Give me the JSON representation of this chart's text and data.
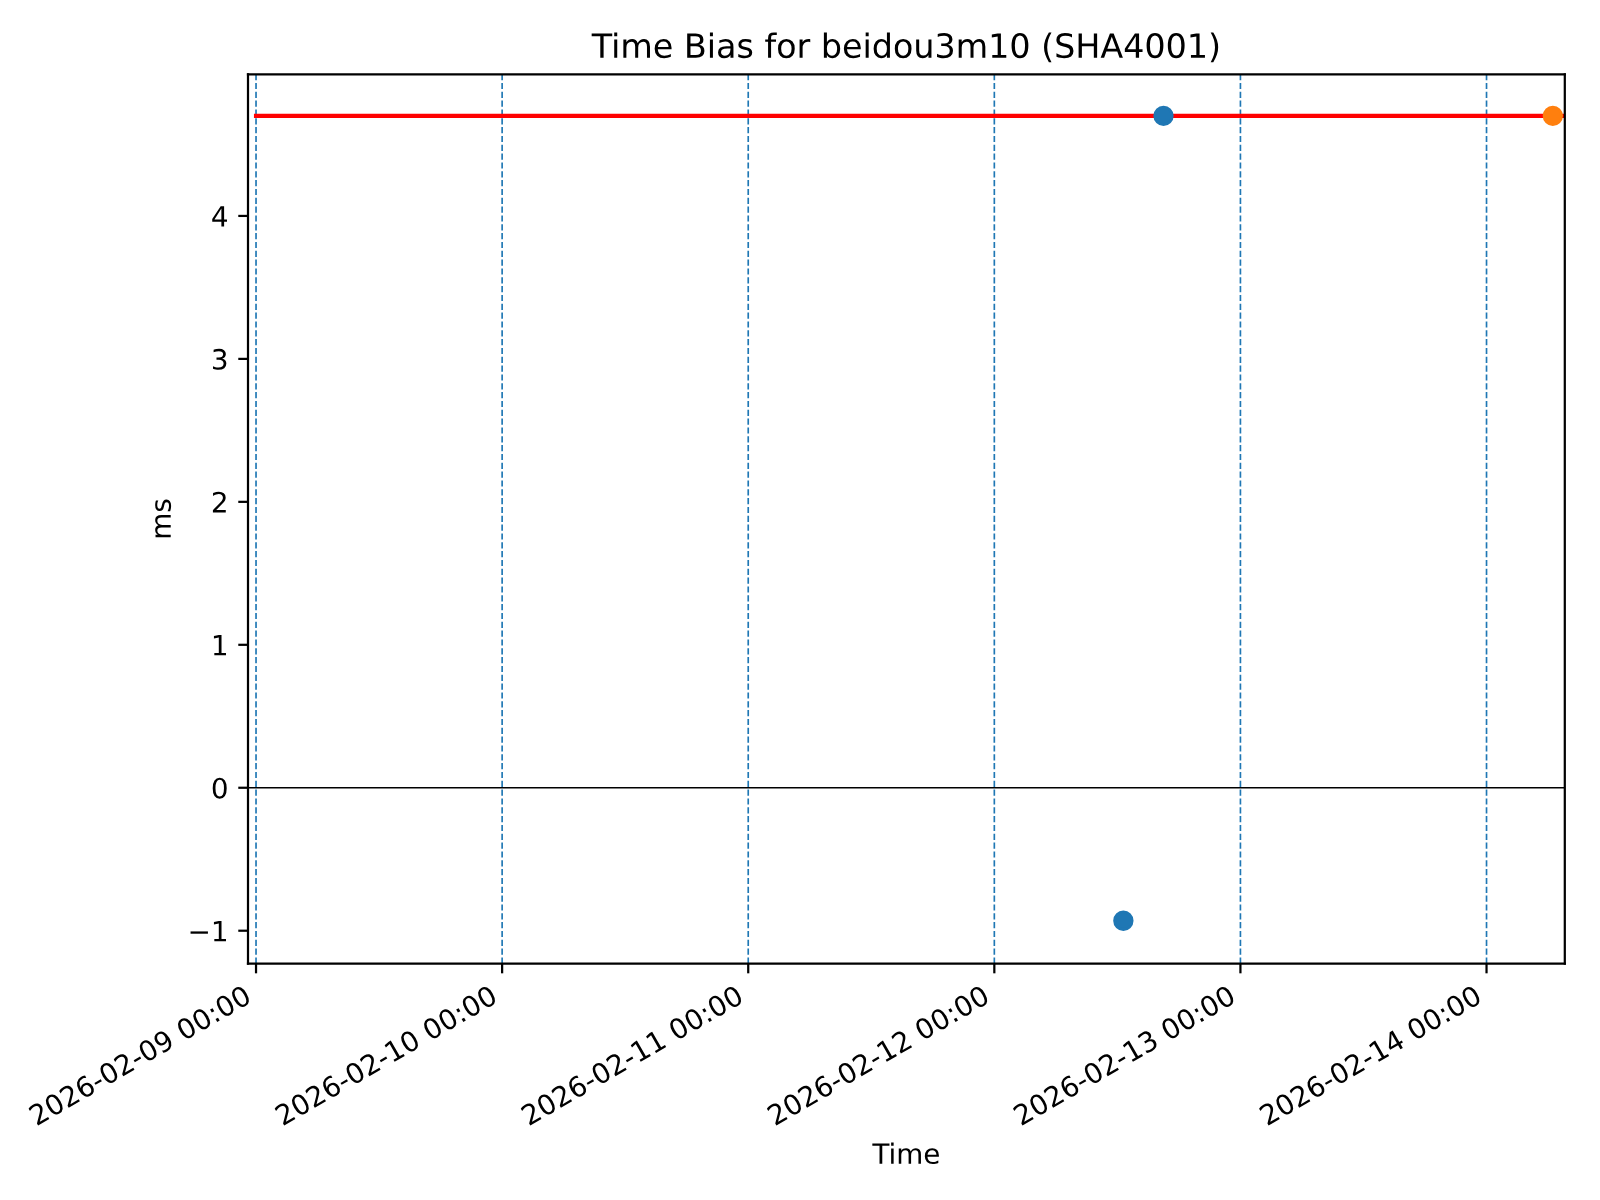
{
  "chart_data": {
    "type": "scatter",
    "title": "Time Bias for beidou3m10 (SHA4001)",
    "xlabel": "Time",
    "ylabel": "ms",
    "series": [
      {
        "type": "line",
        "marker": "none",
        "color": "#ff0000",
        "x": [
          "2026-02-09T00:00",
          "2026-02-14T07:38"
        ],
        "values": [
          4.7,
          4.7
        ]
      },
      {
        "color": "#1f77b4",
        "x": [
          "2026-02-12T12:35",
          "2026-02-12T16:30"
        ],
        "values": [
          -0.93,
          4.7
        ]
      },
      {
        "color": "#ff7f0e",
        "x": [
          "2026-02-14T06:28"
        ],
        "values": [
          4.7
        ]
      }
    ],
    "marker": "circle",
    "xlim": [
      "2026-02-08T23:13",
      "2026-02-14T07:38"
    ],
    "xticks": [
      {
        "value": "2026-02-09T00:00",
        "label": "2026-02-09 00:00"
      },
      {
        "value": "2026-02-10T00:00",
        "label": "2026-02-10 00:00"
      },
      {
        "value": "2026-02-11T00:00",
        "label": "2026-02-11 00:00"
      },
      {
        "value": "2026-02-12T00:00",
        "label": "2026-02-12 00:00"
      },
      {
        "value": "2026-02-13T00:00",
        "label": "2026-02-13 00:00"
      },
      {
        "value": "2026-02-14T00:00",
        "label": "2026-02-14 00:00"
      }
    ],
    "ylim": [
      -1.23,
      4.99
    ],
    "yticks": [
      {
        "value": -1,
        "label": "−1"
      },
      0,
      1,
      2,
      3,
      4
    ],
    "ref_lines": [
      {
        "axis": "y",
        "value": 0,
        "color": "#000000"
      },
      {
        "axis": "x",
        "value": "2026-02-09T00:00",
        "color": "#1f77b4",
        "line_style": "dashed"
      },
      {
        "axis": "x",
        "value": "2026-02-10T00:00",
        "color": "#1f77b4",
        "line_style": "dashed"
      },
      {
        "axis": "x",
        "value": "2026-02-11T00:00",
        "color": "#1f77b4",
        "line_style": "dashed"
      },
      {
        "axis": "x",
        "value": "2026-02-12T00:00",
        "color": "#1f77b4",
        "line_style": "dashed"
      },
      {
        "axis": "x",
        "value": "2026-02-13T00:00",
        "color": "#1f77b4",
        "line_style": "dashed"
      },
      {
        "axis": "x",
        "value": "2026-02-14T00:00",
        "color": "#1f77b4",
        "line_style": "dashed"
      }
    ]
  }
}
